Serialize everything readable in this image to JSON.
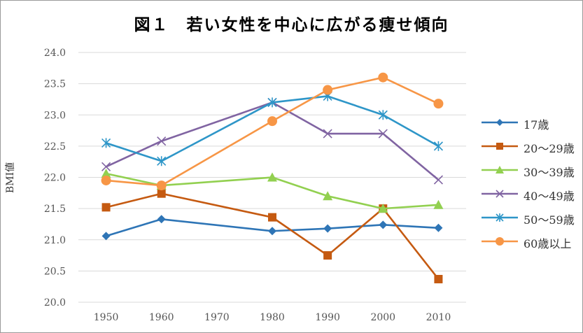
{
  "chart_data": {
    "type": "line",
    "title": "図１　若い女性を中心に広がる痩せ傾向",
    "ylabel": "BMI値",
    "xlabel": "",
    "ylim": [
      20.0,
      24.0
    ],
    "yticks": [
      "20.0",
      "20.5",
      "21.0",
      "21.5",
      "22.0",
      "22.5",
      "23.0",
      "23.5",
      "24.0"
    ],
    "x_ticks": [
      "1950",
      "1960",
      "1970",
      "1980",
      "1990",
      "2000",
      "2010"
    ],
    "x": [
      1950,
      1960,
      1980,
      1990,
      2000,
      2010
    ],
    "grid": "horizontal",
    "legend_position": "right",
    "series": [
      {
        "name": "17歳",
        "color": "#2e75b6",
        "marker": "diamond",
        "values": [
          21.06,
          21.33,
          21.14,
          21.18,
          21.24,
          21.19
        ]
      },
      {
        "name": "20～29歳",
        "color": "#c55a11",
        "marker": "square",
        "values": [
          21.52,
          21.74,
          21.36,
          20.75,
          21.5,
          20.37
        ]
      },
      {
        "name": "30～39歳",
        "color": "#92d050",
        "marker": "triangle",
        "values": [
          22.06,
          21.87,
          22.0,
          21.7,
          21.5,
          21.56
        ]
      },
      {
        "name": "40～49歳",
        "color": "#8064a2",
        "marker": "x",
        "values": [
          22.17,
          22.58,
          23.2,
          22.7,
          22.7,
          21.96
        ]
      },
      {
        "name": "50～59歳",
        "color": "#2e96c8",
        "marker": "star",
        "values": [
          22.55,
          22.26,
          23.2,
          23.3,
          23.0,
          22.5
        ]
      },
      {
        "name": "60歳以上",
        "color": "#f79646",
        "marker": "circle",
        "values": [
          21.95,
          21.87,
          22.9,
          23.4,
          23.6,
          23.18
        ]
      }
    ]
  }
}
